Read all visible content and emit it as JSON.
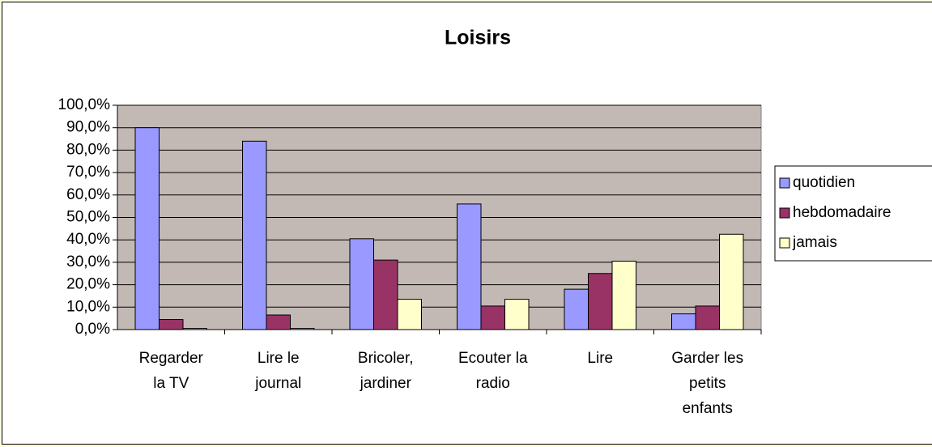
{
  "chart_data": {
    "type": "bar",
    "title": "Loisirs",
    "categories": [
      "Regarder la TV",
      "Lire le journal",
      "Bricoler, jardiner",
      "Ecouter la radio",
      "Lire",
      "Garder les petits enfants"
    ],
    "series": [
      {
        "name": "quotidien",
        "color": "#9999ff",
        "values": [
          90,
          84,
          40.5,
          56,
          18,
          7
        ]
      },
      {
        "name": "hebdomadaire",
        "color": "#993366",
        "values": [
          4.5,
          6.5,
          31,
          10.5,
          25,
          10.5
        ]
      },
      {
        "name": "jamais",
        "color": "#ffffcc",
        "values": [
          0.5,
          0.5,
          13.5,
          13.5,
          30.5,
          42.5
        ]
      }
    ],
    "ylim": [
      0,
      100
    ],
    "yticks": [
      {
        "value": 0,
        "label": "0,0%"
      },
      {
        "value": 10,
        "label": "10,0%"
      },
      {
        "value": 20,
        "label": "20,0%"
      },
      {
        "value": 30,
        "label": "30,0%"
      },
      {
        "value": 40,
        "label": "40,0%"
      },
      {
        "value": 50,
        "label": "50,0%"
      },
      {
        "value": 60,
        "label": "60,0%"
      },
      {
        "value": 70,
        "label": "70,0%"
      },
      {
        "value": 80,
        "label": "80,0%"
      },
      {
        "value": 90,
        "label": "90,0%"
      },
      {
        "value": 100,
        "label": "100,0%"
      }
    ],
    "grid": true,
    "legend": "right"
  }
}
